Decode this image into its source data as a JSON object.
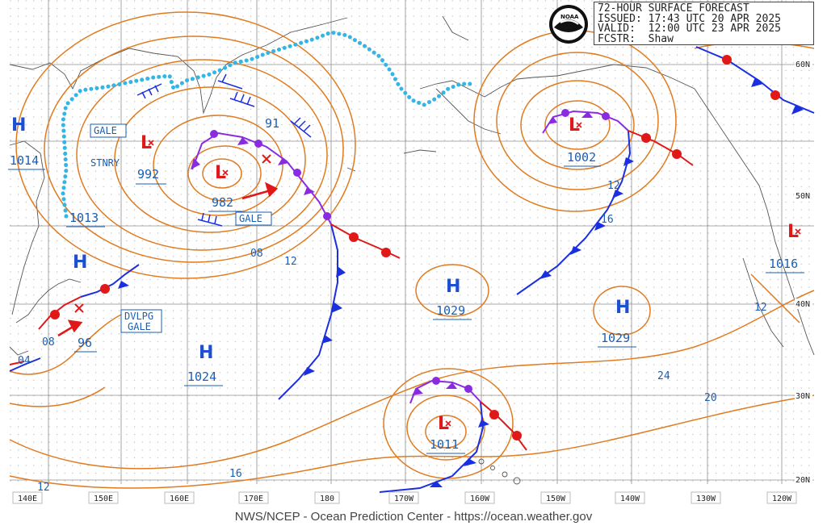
{
  "header": {
    "title": "72-HOUR SURFACE FORECAST",
    "issued": "ISSUED: 17:43 UTC 20 APR 2025",
    "valid": "VALID:  12:00 UTC 23 APR 2025",
    "forecaster": "FCSTR:  Shaw",
    "logo_text": "NOAA"
  },
  "footer": "NWS/NCEP - Ocean Prediction Center - https://ocean.weather.gov",
  "colors": {
    "isobar": "#e07b1f",
    "pressure_label": "#1a5fb4",
    "high": "#1f4fd1",
    "low": "#e02020",
    "cold_front": "#1a2fe0",
    "warm_front": "#e01818",
    "occluded_front": "#8a2be2",
    "ice_edge": "#33b5e5",
    "grid": "#9a9a9a",
    "coast": "#555555"
  },
  "lat_labels": [
    "60N",
    "50N",
    "40N",
    "30N",
    "20N"
  ],
  "lon_labels": [
    "140E",
    "150E",
    "160E",
    "170E",
    "180",
    "170W",
    "160W",
    "150W",
    "140W",
    "130W",
    "120W"
  ],
  "pressure_centers": [
    {
      "type": "H",
      "value": "1014"
    },
    {
      "type": "L",
      "value": "992"
    },
    {
      "type": "L",
      "value": "982"
    },
    {
      "type": "L",
      "value": "1002"
    },
    {
      "type": "H",
      "value": "1013"
    },
    {
      "type": "H",
      "value": "1029"
    },
    {
      "type": "H",
      "value": "1029"
    },
    {
      "type": "H",
      "value": "1024"
    },
    {
      "type": "L",
      "value": "1011"
    },
    {
      "type": "L",
      "value": "1016"
    },
    {
      "type": "H",
      "value": "96"
    }
  ],
  "warnings": [
    "GALE",
    "STNRY",
    "GALE",
    "DVLPG",
    "GALE"
  ],
  "isobar_labels": [
    "91",
    "08",
    "12",
    "12",
    "16",
    "24",
    "20",
    "16",
    "12",
    "08",
    "04",
    "12"
  ]
}
